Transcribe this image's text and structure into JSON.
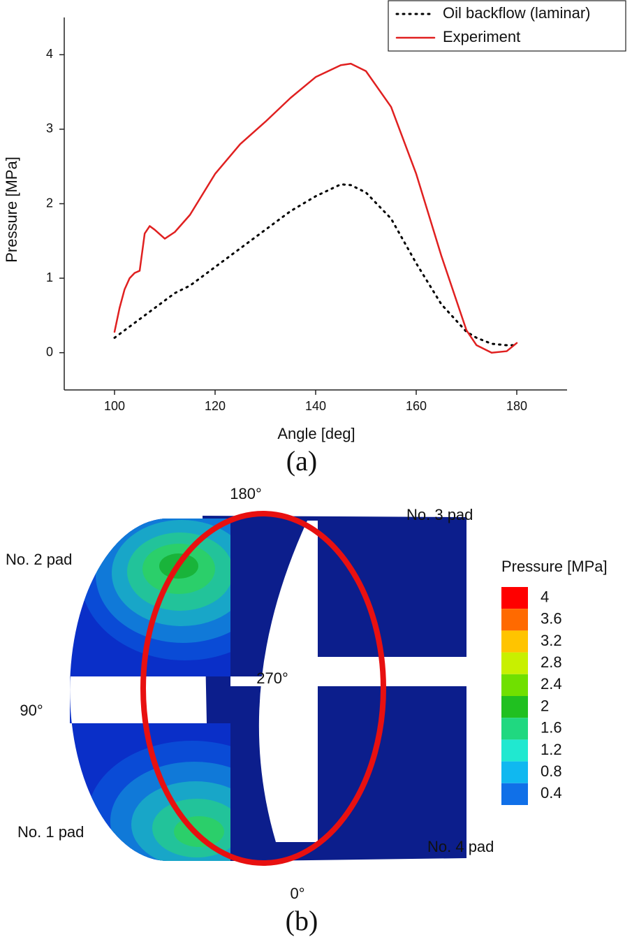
{
  "chart_data": {
    "type": "line",
    "x_label": "Angle [deg]",
    "y_label": "Pressure [MPa]",
    "x": [
      100,
      101,
      102,
      103,
      104,
      105,
      106,
      107,
      108,
      110,
      112,
      115,
      120,
      125,
      130,
      135,
      140,
      145,
      147,
      150,
      155,
      160,
      165,
      170,
      172,
      175,
      178,
      180
    ],
    "series": [
      {
        "name": "Oil backflow (laminar)",
        "color": "#000000",
        "line_style": "dotted",
        "values": [
          0.2,
          0.25,
          0.3,
          0.35,
          0.4,
          0.45,
          0.5,
          0.55,
          0.6,
          0.7,
          0.8,
          0.9,
          1.15,
          1.4,
          1.65,
          1.9,
          2.1,
          2.26,
          2.25,
          2.15,
          1.8,
          1.2,
          0.65,
          0.28,
          0.2,
          0.12,
          0.1,
          0.1
        ]
      },
      {
        "name": "Experiment",
        "color": "#e02020",
        "line_style": "solid",
        "values": [
          0.28,
          0.6,
          0.85,
          1.0,
          1.07,
          1.1,
          1.6,
          1.7,
          1.65,
          1.53,
          1.62,
          1.85,
          2.4,
          2.8,
          3.1,
          3.42,
          3.7,
          3.86,
          3.88,
          3.78,
          3.3,
          2.4,
          1.3,
          0.3,
          0.1,
          0.0,
          0.02,
          0.13
        ]
      }
    ],
    "xlim": [
      90,
      190
    ],
    "xticks": [
      100,
      120,
      140,
      160,
      180
    ],
    "ylim": [
      -0.5,
      4.5
    ],
    "yticks": [
      0,
      1,
      2,
      3,
      4
    ],
    "legend": "top-right",
    "grid": false,
    "caption": "(a)"
  },
  "figure_b": {
    "caption": "(b)",
    "angle_labels": [
      "180°",
      "270°",
      "90°",
      "0°"
    ],
    "pad_labels": [
      "No. 3 pad",
      "No. 2 pad",
      "No. 1 pad",
      "No. 4 pad"
    ],
    "colorbar": {
      "title": "Pressure [MPa]",
      "ticks": [
        4,
        3.6,
        3.2,
        2.8,
        2.4,
        2,
        1.6,
        1.2,
        0.8,
        0.4
      ],
      "colors": [
        "#ff0000",
        "#ff6a00",
        "#ffc400",
        "#c8f000",
        "#70e000",
        "#20c020",
        "#20d880",
        "#20e8d0",
        "#10b8f0",
        "#1070e8"
      ]
    }
  }
}
